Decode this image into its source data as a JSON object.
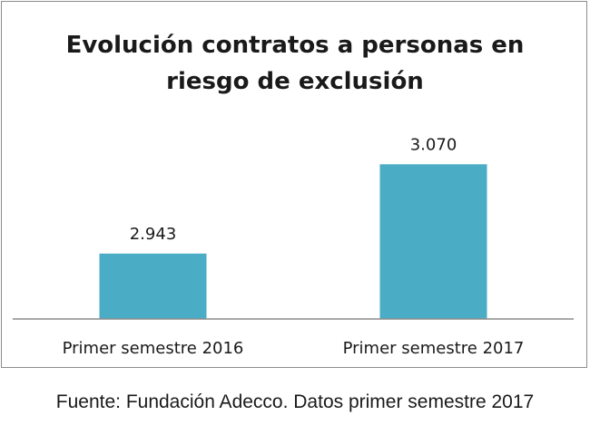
{
  "chart_data": {
    "type": "bar",
    "title": "Evolución contratos a personas en\nriesgo de exclusión",
    "categories": [
      "Primer semestre 2016",
      "Primer semestre 2017"
    ],
    "values": [
      2943,
      3070
    ],
    "data_labels": [
      "2.943",
      "3.070"
    ],
    "xlabel": "",
    "ylabel": "",
    "ylim": [
      2850,
      3100
    ],
    "grid": false,
    "legend": "none",
    "bar_color": "#4bacc6",
    "axis_color": "#8c8c8c"
  },
  "footer": {
    "source": "Fuente: Fundación Adecco. Datos primer semestre 2017"
  }
}
